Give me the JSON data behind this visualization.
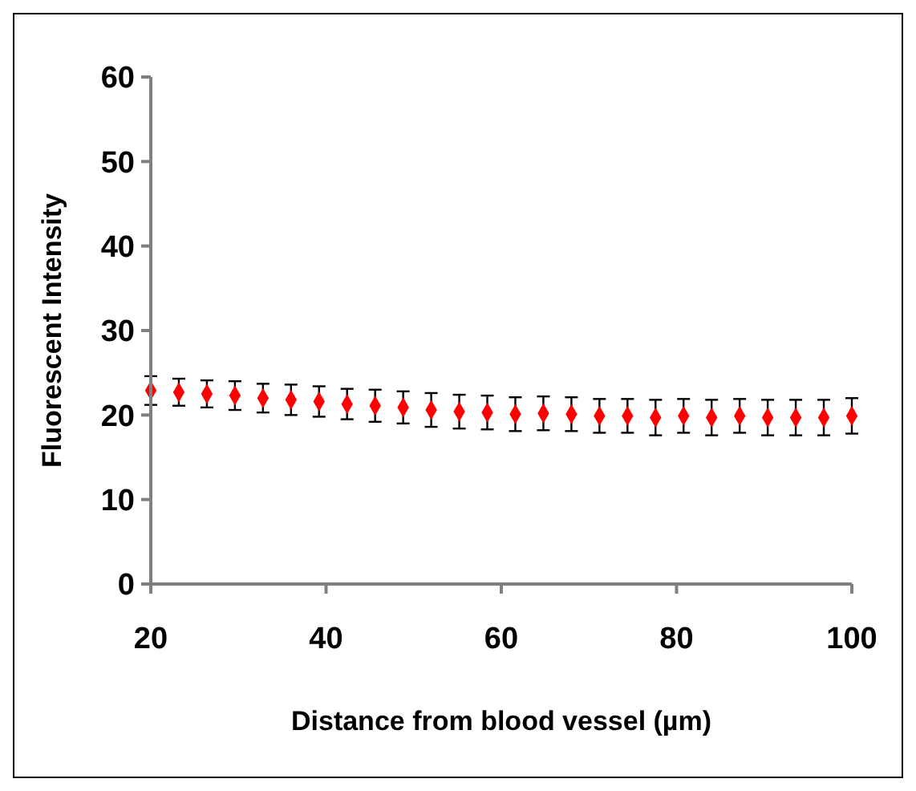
{
  "chart_data": {
    "type": "scatter",
    "xlabel": "Distance from blood vessel (µm)",
    "ylabel": "Fluorescent Intensity",
    "x": [
      20,
      23.2,
      26.4,
      29.6,
      32.8,
      36,
      39.2,
      42.4,
      45.6,
      48.8,
      52,
      55.2,
      58.4,
      61.6,
      64.8,
      68,
      71.2,
      74.4,
      77.6,
      80.8,
      84,
      87.2,
      90.4,
      93.6,
      96.8,
      100
    ],
    "series": [
      {
        "color": "#ff0000",
        "values": [
          22.9,
          22.7,
          22.5,
          22.3,
          22.0,
          21.8,
          21.6,
          21.3,
          21.1,
          20.9,
          20.6,
          20.4,
          20.3,
          20.1,
          20.2,
          20.1,
          19.9,
          19.9,
          19.7,
          19.9,
          19.7,
          19.9,
          19.7,
          19.7,
          19.7,
          19.9
        ],
        "errors": [
          1.7,
          1.6,
          1.6,
          1.7,
          1.7,
          1.8,
          1.8,
          1.8,
          1.9,
          1.9,
          2.0,
          2.0,
          2.0,
          2.0,
          2.0,
          2.0,
          2.0,
          2.0,
          2.1,
          2.0,
          2.1,
          2.0,
          2.1,
          2.1,
          2.1,
          2.1
        ]
      }
    ],
    "xlim": [
      20,
      100
    ],
    "xticks": [
      20,
      40,
      60,
      80,
      100
    ],
    "ylim": [
      0,
      60
    ],
    "yticks": [
      0,
      10,
      20,
      30,
      40,
      50,
      60
    ],
    "marker": "diamond",
    "grid": false
  }
}
